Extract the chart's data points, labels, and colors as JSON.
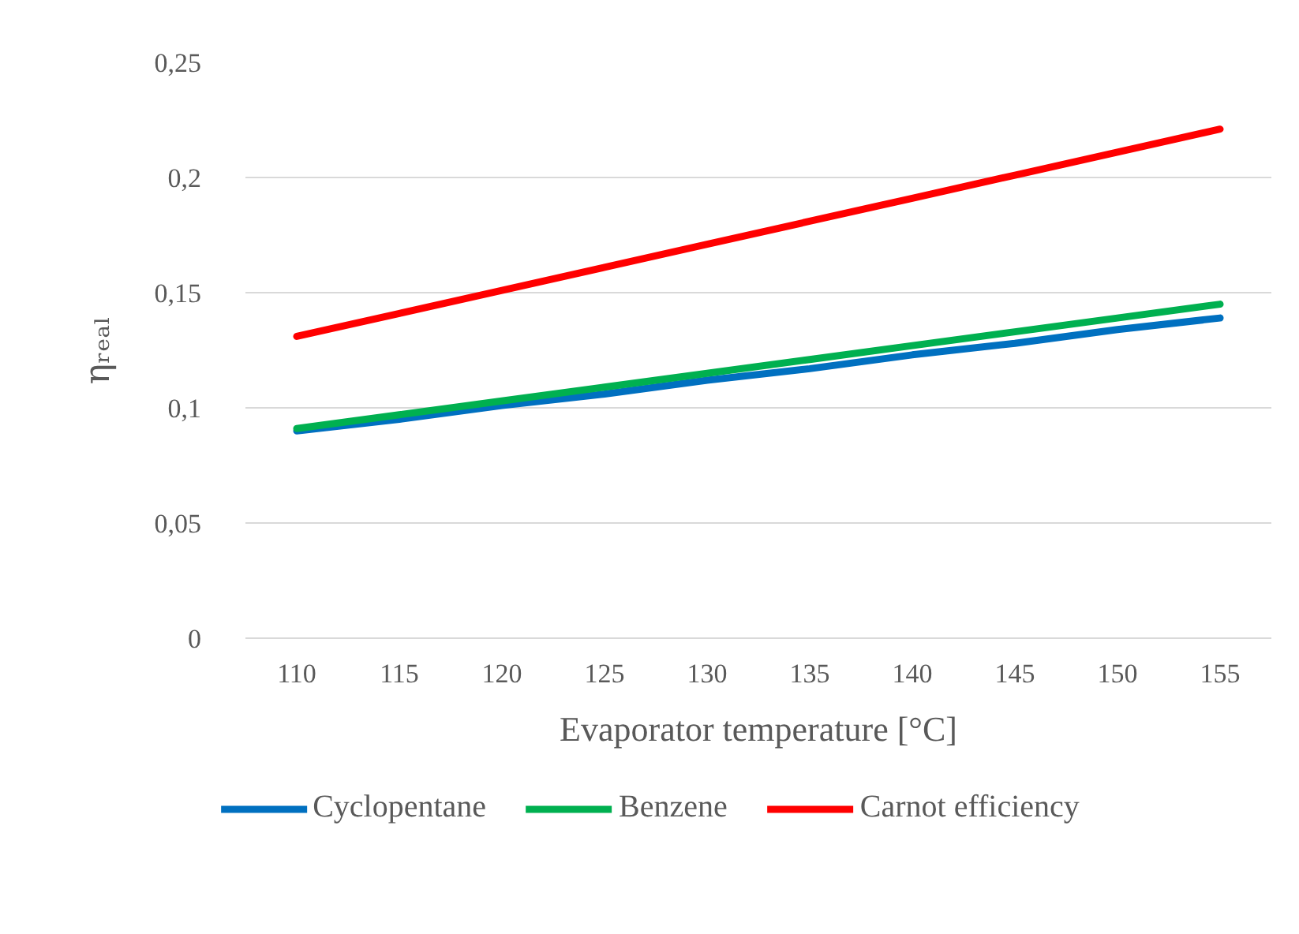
{
  "chart_data": {
    "type": "line",
    "xlabel": "Evaporator temperature [°C]",
    "ylabel": "ηᵣₑₐₗ",
    "categories": [
      "110",
      "115",
      "120",
      "125",
      "130",
      "135",
      "140",
      "145",
      "150",
      "155"
    ],
    "series": [
      {
        "name": "Cyclopentane",
        "color": "#0070c0",
        "values": [
          0.09,
          0.095,
          0.101,
          0.106,
          0.112,
          0.117,
          0.123,
          0.128,
          0.134,
          0.139
        ]
      },
      {
        "name": "Benzene",
        "color": "#00b050",
        "values": [
          0.091,
          0.097,
          0.103,
          0.109,
          0.115,
          0.121,
          0.127,
          0.133,
          0.139,
          0.145
        ]
      },
      {
        "name": "Carnot efficiency",
        "color": "#ff0000",
        "values": [
          0.131,
          0.141,
          0.151,
          0.161,
          0.171,
          0.181,
          0.191,
          0.201,
          0.211,
          0.221
        ]
      }
    ],
    "ylim": [
      0,
      0.25
    ],
    "yticks": [
      {
        "value": 0,
        "label": "0"
      },
      {
        "value": 0.05,
        "label": "0,05"
      },
      {
        "value": 0.1,
        "label": "0,1"
      },
      {
        "value": 0.15,
        "label": "0,15"
      },
      {
        "value": 0.2,
        "label": "0,2"
      },
      {
        "value": 0.25,
        "label": "0,25"
      }
    ],
    "grid": "y",
    "legend": "bottom",
    "marker": "none",
    "line_style": "solid"
  }
}
